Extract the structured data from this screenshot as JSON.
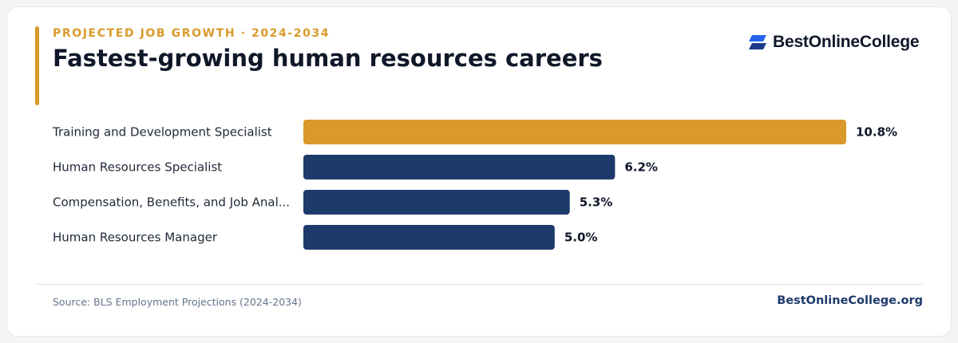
{
  "header": {
    "eyebrow": "PROJECTED JOB GROWTH · 2024-2034",
    "title": "Fastest-growing human resources careers",
    "brand": "BestOnlineCollege",
    "logo_icon": "stacked-parallelogram-logo-icon"
  },
  "colors": {
    "accent": "#d99a2b",
    "bar_primary": "#1e3a6b",
    "bar_highlight": "#d99a2b",
    "title": "#0f172a",
    "logo_blue": "#2563eb"
  },
  "chart_data": {
    "type": "bar",
    "orientation": "horizontal",
    "categories": [
      "Training and Development Specialist",
      "Human Resources Specialist",
      "Compensation, Benefits, and Job Anal...",
      "Human Resources Manager"
    ],
    "values": [
      10.8,
      6.2,
      5.3,
      5.0
    ],
    "value_labels": [
      "10.8%",
      "6.2%",
      "5.3%",
      "5.0%"
    ],
    "highlight_index": 0,
    "xlim": [
      0,
      10.8
    ],
    "grid": false,
    "legend": "none"
  },
  "footer": {
    "source": "Source: BLS Employment Projections (2024-2034)",
    "site": "BestOnlineCollege.org"
  }
}
